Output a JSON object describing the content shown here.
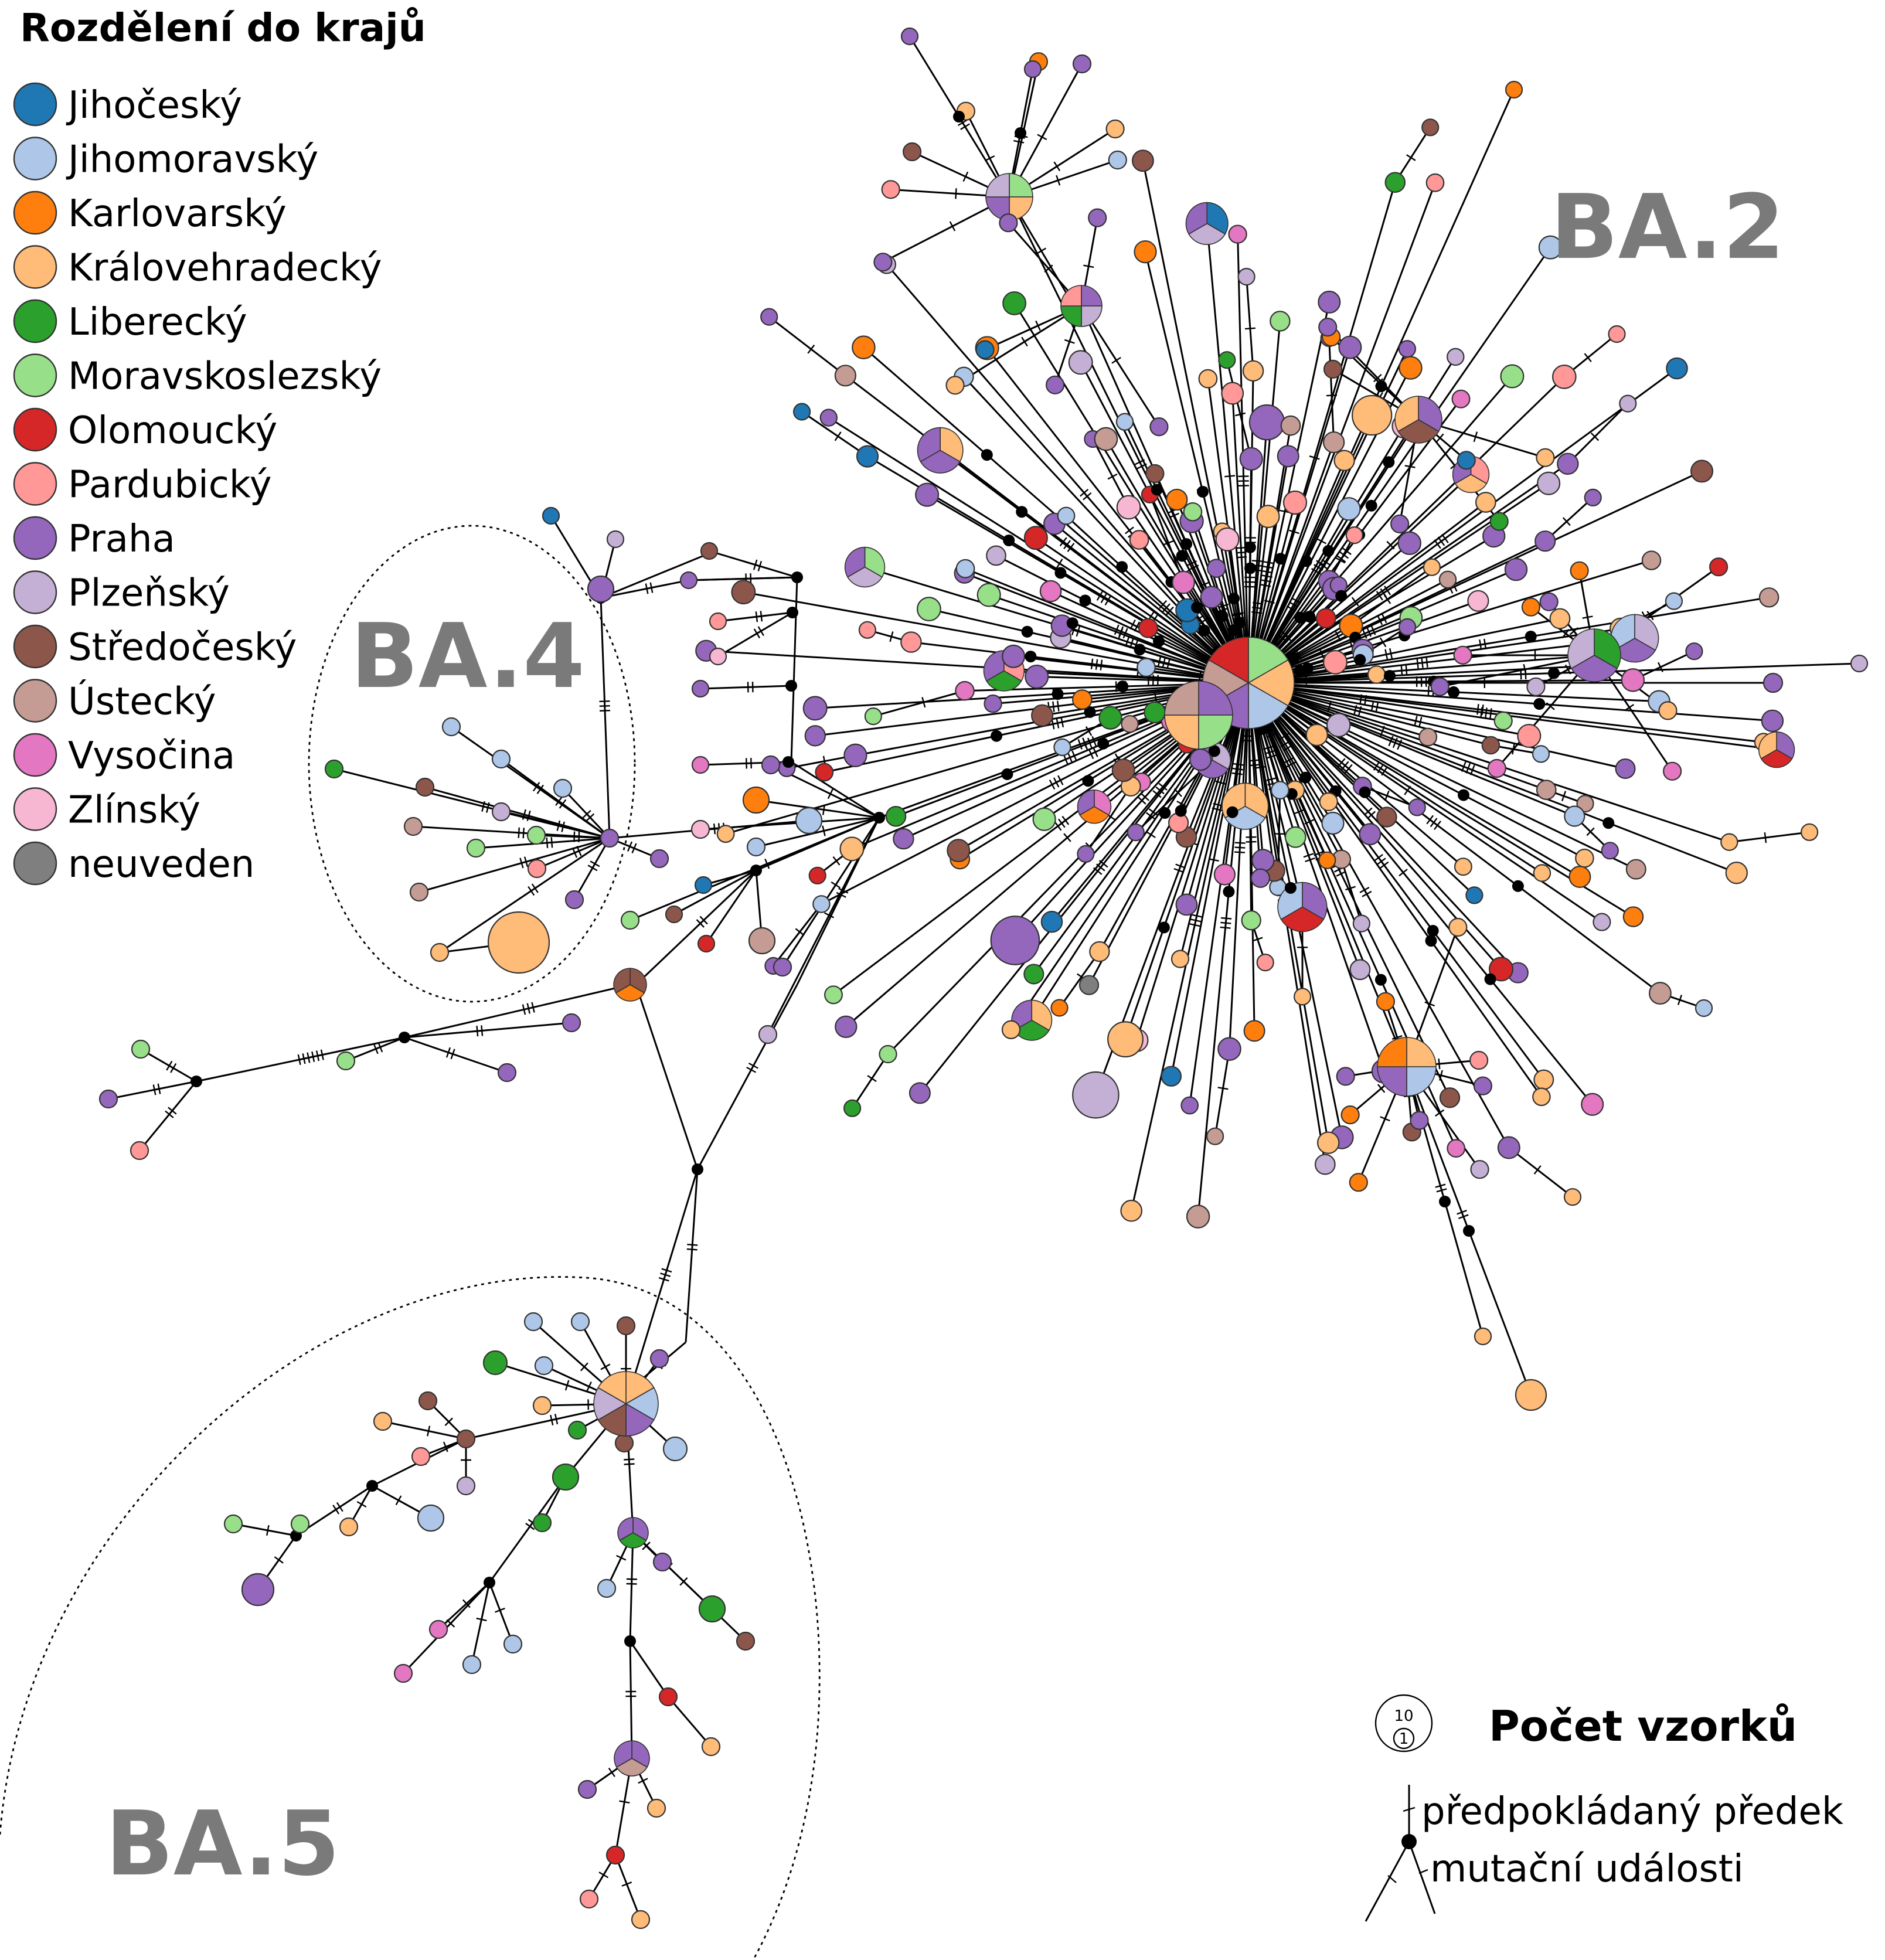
{
  "legend": {
    "title": "Rozdělení do krajů",
    "regions": [
      {
        "name": "Jihočeský",
        "color": "#1f77b4"
      },
      {
        "name": "Jihomoravský",
        "color": "#aec7e8"
      },
      {
        "name": "Karlovarský",
        "color": "#ff7f0e"
      },
      {
        "name": "Královehradecký",
        "color": "#ffbb78"
      },
      {
        "name": "Liberecký",
        "color": "#2ca02c"
      },
      {
        "name": "Moravskoslezský",
        "color": "#98df8a"
      },
      {
        "name": "Olomoucký",
        "color": "#d62728"
      },
      {
        "name": "Pardubický",
        "color": "#ff9896"
      },
      {
        "name": "Praha",
        "color": "#9467bd"
      },
      {
        "name": "Plzeňský",
        "color": "#c5b0d5"
      },
      {
        "name": "Středočeský",
        "color": "#8c564b"
      },
      {
        "name": "Ústecký",
        "color": "#c49c94"
      },
      {
        "name": "Vysočina",
        "color": "#e377c2"
      },
      {
        "name": "Zlínský",
        "color": "#f7b6d2"
      },
      {
        "name": "neuveden",
        "color": "#7f7f7f"
      }
    ]
  },
  "clusters": {
    "ba2": "BA.2",
    "ba4": "BA.4",
    "ba5": "BA.5"
  },
  "key": {
    "title": "Počet vzorků",
    "size_large": "10",
    "size_small": "1",
    "ancestor": "předpokládaný předek",
    "mutation": "mutační události"
  }
}
